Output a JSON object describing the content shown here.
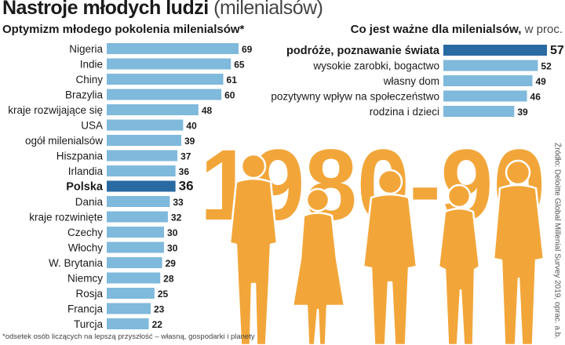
{
  "title": {
    "bold": "Nastroje młodych ludzi",
    "light": "(milenialsów)"
  },
  "big_text": "1980-90",
  "footnote": "*odsetek osób liczących na lepszą przyszłość – własną, gospodarki i planety",
  "source": "Źródło: Deloitte Global Millenial Survey 2019, oprac. a.b.",
  "colors": {
    "bar": "#7fb9dc",
    "highlight": "#2a6aa3",
    "year": "#f2a63a",
    "silhouette_fill": "#f2a63a",
    "silhouette_stroke": "#ffffff"
  },
  "chart_data": [
    {
      "type": "bar",
      "orientation": "horizontal",
      "title": "Optymizm młodego pokolenia milenialsów*",
      "categories": [
        "Nigeria",
        "Indie",
        "Chiny",
        "Brazylia",
        "kraje rozwijające się",
        "USA",
        "ogół milenialsów",
        "Hiszpania",
        "Irlandia",
        "Polska",
        "Dania",
        "kraje rozwinięte",
        "Czechy",
        "Włochy",
        "W. Brytania",
        "Niemcy",
        "Rosja",
        "Francja",
        "Turcja"
      ],
      "values": [
        69,
        65,
        61,
        60,
        48,
        40,
        39,
        37,
        36,
        36,
        33,
        32,
        30,
        30,
        29,
        28,
        25,
        23,
        22
      ],
      "highlight": "Polska",
      "xlim": [
        0,
        69
      ]
    },
    {
      "type": "bar",
      "orientation": "horizontal",
      "title_bold": "Co jest ważne dla milenialsów,",
      "title_light": "w proc.",
      "categories": [
        "podróże, poznawanie świata",
        "wysokie zarobki, bogactwo",
        "własny dom",
        "pozytywny wpływ na społeczeństwo",
        "rodzina i dzieci"
      ],
      "values": [
        57,
        52,
        49,
        46,
        39
      ],
      "highlight": "podróże, poznawanie świata",
      "xlim": [
        0,
        57
      ]
    }
  ]
}
